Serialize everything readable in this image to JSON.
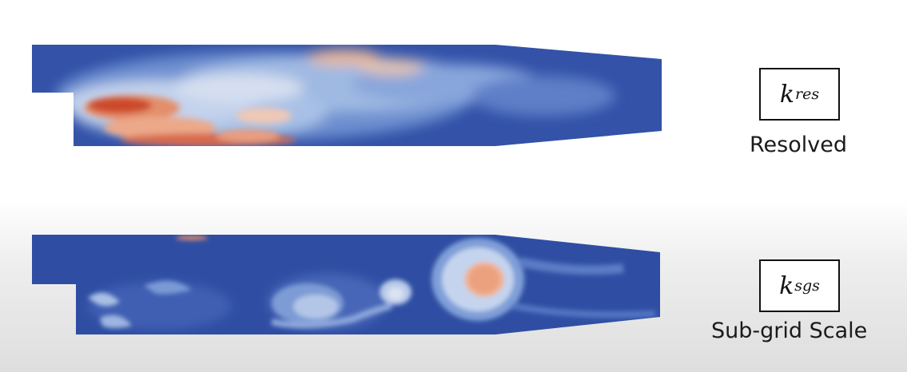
{
  "panels": [
    {
      "id": "resolved",
      "symbol_main": "k",
      "symbol_sub": "res",
      "caption": "Resolved"
    },
    {
      "id": "subgrid",
      "symbol_main": "k",
      "symbol_sub": "sgs",
      "caption": "Sub-grid Scale"
    }
  ],
  "colors": {
    "background_low": "#2f4ea3",
    "mid": "#6c8fd0",
    "light": "#c7d7ee",
    "peach": "#efb393",
    "high": "#c7361f"
  }
}
